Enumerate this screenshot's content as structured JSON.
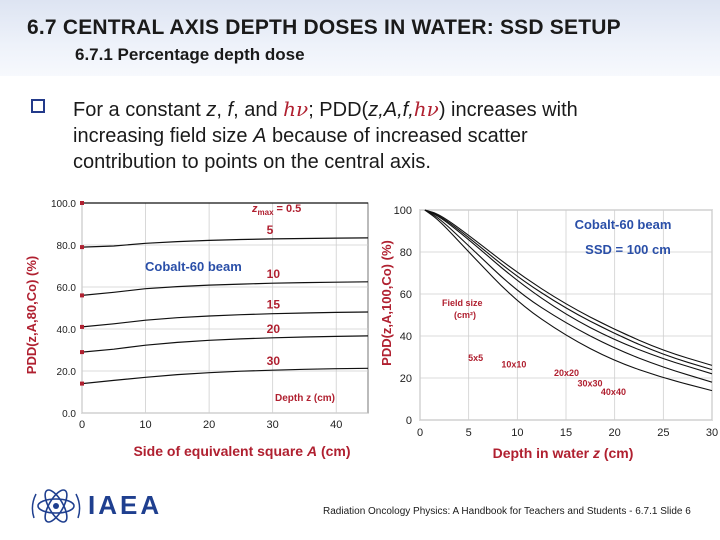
{
  "header": {
    "title": "6.7  CENTRAL AXIS DEPTH DOSES IN WATER: SSD SETUP",
    "subtitle": "6.7.1 Percentage depth dose"
  },
  "bullet": {
    "part1": "For a constant ",
    "z": "z",
    "c1": ", ",
    "f": "f",
    "c2": ", and ",
    "hv1": "hν",
    "c3": "; PDD(",
    "args": "z,A,f,",
    "hv2": "hν",
    "line1_end": ") increases with",
    "line2_a": "increasing field size ",
    "A": "A",
    "line2_b": " because of increased scatter",
    "line3": "contribution to points on the central axis."
  },
  "chart_data": [
    {
      "type": "line",
      "ylabel": "PDD(z,A,80,Co)  (%)",
      "xlabel_prefix": "Side of equivalent square ",
      "xlabel_var": "A",
      "xlabel_suffix": " (cm)",
      "xlim": [
        0,
        45
      ],
      "ylim": [
        0,
        100
      ],
      "xticks": [
        "0",
        "10",
        "20",
        "30",
        "40"
      ],
      "yticks": [
        "0.0",
        "20.0",
        "40.0",
        "60.0",
        "80.0",
        "100.0"
      ],
      "annotation": "Cobalt-60 beam",
      "depth_label": "Depth z (cm)",
      "zmax_label": "z",
      "zmax_sub": "max",
      "zmax_value": "= 0.5",
      "series": [
        {
          "name": "5",
          "x": [
            0,
            5,
            10,
            15,
            20,
            25,
            30,
            35,
            40,
            45
          ],
          "values": [
            79,
            79.5,
            80.8,
            81.6,
            82.2,
            82.6,
            82.9,
            83.1,
            83.3,
            83.4
          ]
        },
        {
          "name": "10",
          "x": [
            0,
            5,
            10,
            15,
            20,
            25,
            30,
            35,
            40,
            45
          ],
          "values": [
            56,
            57.5,
            59.2,
            60.2,
            60.9,
            61.4,
            61.8,
            62.1,
            62.3,
            62.5
          ]
        },
        {
          "name": "15",
          "x": [
            0,
            5,
            10,
            15,
            20,
            25,
            30,
            35,
            40,
            45
          ],
          "values": [
            41,
            42.5,
            44.2,
            45.4,
            46.2,
            46.8,
            47.3,
            47.6,
            47.9,
            48.1
          ]
        },
        {
          "name": "20",
          "x": [
            0,
            5,
            10,
            15,
            20,
            25,
            30,
            35,
            40,
            45
          ],
          "values": [
            29,
            30.4,
            32.3,
            33.6,
            34.6,
            35.3,
            35.8,
            36.2,
            36.5,
            36.7
          ]
        },
        {
          "name": "30",
          "x": [
            0,
            5,
            10,
            15,
            20,
            25,
            30,
            35,
            40,
            45
          ],
          "values": [
            14,
            15.5,
            17,
            18.3,
            19.2,
            19.9,
            20.4,
            20.8,
            21.1,
            21.3
          ]
        }
      ],
      "zmax_series": {
        "x": [
          0,
          5,
          10,
          15,
          20,
          25,
          30,
          35,
          40,
          45
        ],
        "values": [
          100,
          100,
          100,
          100,
          100,
          100,
          100,
          100,
          100,
          100
        ]
      }
    },
    {
      "type": "line",
      "ylabel": "PDD(z,A,100,Co)  (%)",
      "xlabel_prefix": "Depth in water ",
      "xlabel_var": "z",
      "xlabel_suffix": " (cm)",
      "xlim": [
        0,
        30
      ],
      "ylim": [
        0,
        100
      ],
      "xticks": [
        "0",
        "5",
        "10",
        "15",
        "20",
        "25",
        "30"
      ],
      "yticks": [
        "0",
        "20",
        "40",
        "60",
        "80",
        "100"
      ],
      "title": "Cobalt-60 beam",
      "title2": "SSD = 100 cm",
      "legend_title": "Field size",
      "legend_unit": "(cm²)",
      "series": [
        {
          "name": "5x5",
          "x": [
            0.5,
            2,
            5,
            10,
            15,
            20,
            25,
            30
          ],
          "values": [
            100,
            95,
            80,
            56,
            40,
            28,
            20,
            14
          ]
        },
        {
          "name": "10x10",
          "x": [
            0.5,
            2,
            5,
            10,
            15,
            20,
            25,
            30
          ],
          "values": [
            100,
            96,
            83,
            61,
            46,
            34,
            25,
            18
          ]
        },
        {
          "name": "20x20",
          "x": [
            0.5,
            2,
            5,
            10,
            15,
            20,
            25,
            30
          ],
          "values": [
            100,
            97,
            86,
            66,
            50,
            38,
            29,
            22
          ]
        },
        {
          "name": "30x30",
          "x": [
            0.5,
            2,
            5,
            10,
            15,
            20,
            25,
            30
          ],
          "values": [
            100,
            97.5,
            87,
            68,
            53,
            41,
            31,
            24
          ]
        },
        {
          "name": "40x40",
          "x": [
            0.5,
            2,
            5,
            10,
            15,
            20,
            25,
            30
          ],
          "values": [
            100,
            98,
            88,
            70,
            55,
            43,
            33,
            26
          ]
        }
      ]
    }
  ],
  "footer": {
    "logo_text": "IAEA",
    "credit": "Radiation Oncology Physics: A Handbook for Teachers and Students - 6.7.1 Slide 6"
  },
  "colors": {
    "accent_red": "#b02030",
    "label_blue": "#2a4fa8",
    "line": "#111111",
    "logo_blue": "#1f3f8f"
  }
}
